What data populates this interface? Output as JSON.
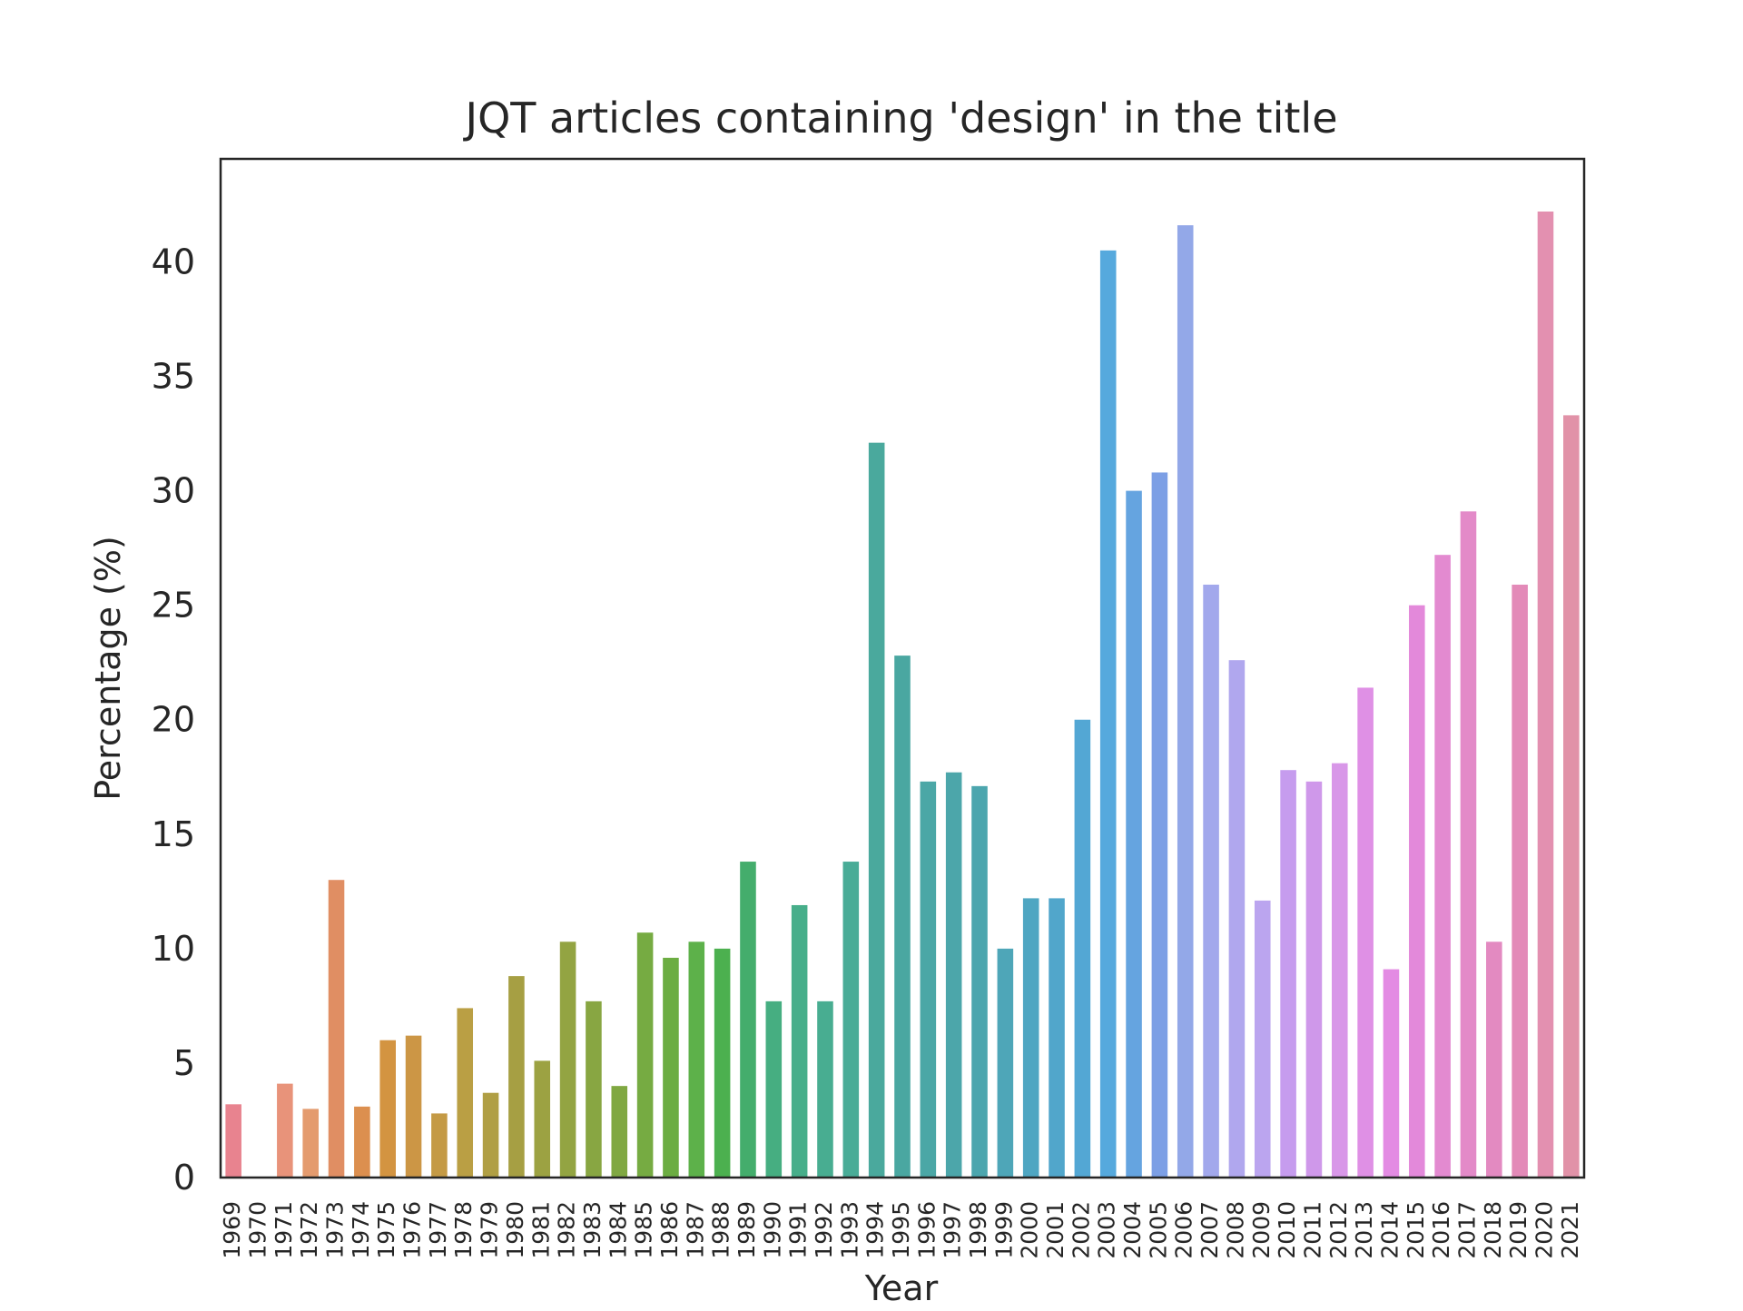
{
  "chart_data": {
    "type": "bar",
    "title": "JQT articles containing 'design' in the title",
    "xlabel": "Year",
    "ylabel": "Percentage (%)",
    "ylim": [
      0,
      44.5
    ],
    "yticks": [
      0,
      5,
      10,
      15,
      20,
      25,
      30,
      35,
      40
    ],
    "grid": false,
    "categories": [
      "1969",
      "1970",
      "1971",
      "1972",
      "1973",
      "1974",
      "1975",
      "1976",
      "1977",
      "1978",
      "1979",
      "1980",
      "1981",
      "1982",
      "1983",
      "1984",
      "1985",
      "1986",
      "1987",
      "1988",
      "1989",
      "1990",
      "1991",
      "1992",
      "1993",
      "1994",
      "1995",
      "1996",
      "1997",
      "1998",
      "1999",
      "2000",
      "2001",
      "2002",
      "2003",
      "2004",
      "2005",
      "2006",
      "2007",
      "2008",
      "2009",
      "2010",
      "2011",
      "2012",
      "2013",
      "2014",
      "2015",
      "2016",
      "2017",
      "2018",
      "2019",
      "2020",
      "2021"
    ],
    "values": [
      3.2,
      0,
      4.1,
      3.0,
      13.0,
      3.1,
      6.0,
      6.2,
      2.8,
      7.4,
      3.7,
      8.8,
      5.1,
      10.3,
      7.7,
      4.0,
      10.7,
      9.6,
      10.3,
      10.0,
      13.8,
      7.7,
      11.9,
      7.7,
      13.8,
      32.1,
      22.8,
      17.3,
      17.7,
      17.1,
      10.0,
      12.2,
      12.2,
      20.0,
      40.5,
      30.0,
      30.8,
      41.6,
      25.9,
      22.6,
      12.1,
      17.8,
      17.3,
      18.1,
      21.4,
      9.1,
      25.0,
      27.2,
      29.1,
      10.3,
      25.9,
      42.2,
      33.3
    ],
    "colors": [
      "#e8838f",
      "#e88a78",
      "#e8937a",
      "#e49b6e",
      "#e08e63",
      "#dc8f4f",
      "#d39441",
      "#cc9645",
      "#c49a45",
      "#ba9f44",
      "#b09f44",
      "#a69f43",
      "#9ca242",
      "#93a442",
      "#88a642",
      "#80a842",
      "#76ab42",
      "#6cad42",
      "#5db14a",
      "#4cb04f",
      "#44ad6c",
      "#46ae81",
      "#47ae8a",
      "#48ad91",
      "#49ac97",
      "#4aa99d",
      "#4aa7a1",
      "#4ba7a6",
      "#4ca6aa",
      "#4ca6ae",
      "#4ea6b8",
      "#4fa6c2",
      "#51a6cb",
      "#53a7d4",
      "#56a9dd",
      "#65a4e0",
      "#7c9fe5",
      "#93a8e8",
      "#a2a8ec",
      "#b0a7ee",
      "#bba5ef",
      "#c69cee",
      "#cf98ea",
      "#d897e8",
      "#df90e5",
      "#e38be3",
      "#e389da",
      "#e38ad0",
      "#e38ac8",
      "#e38ac1",
      "#e38ab8",
      "#e390b0",
      "#e192a8"
    ]
  }
}
